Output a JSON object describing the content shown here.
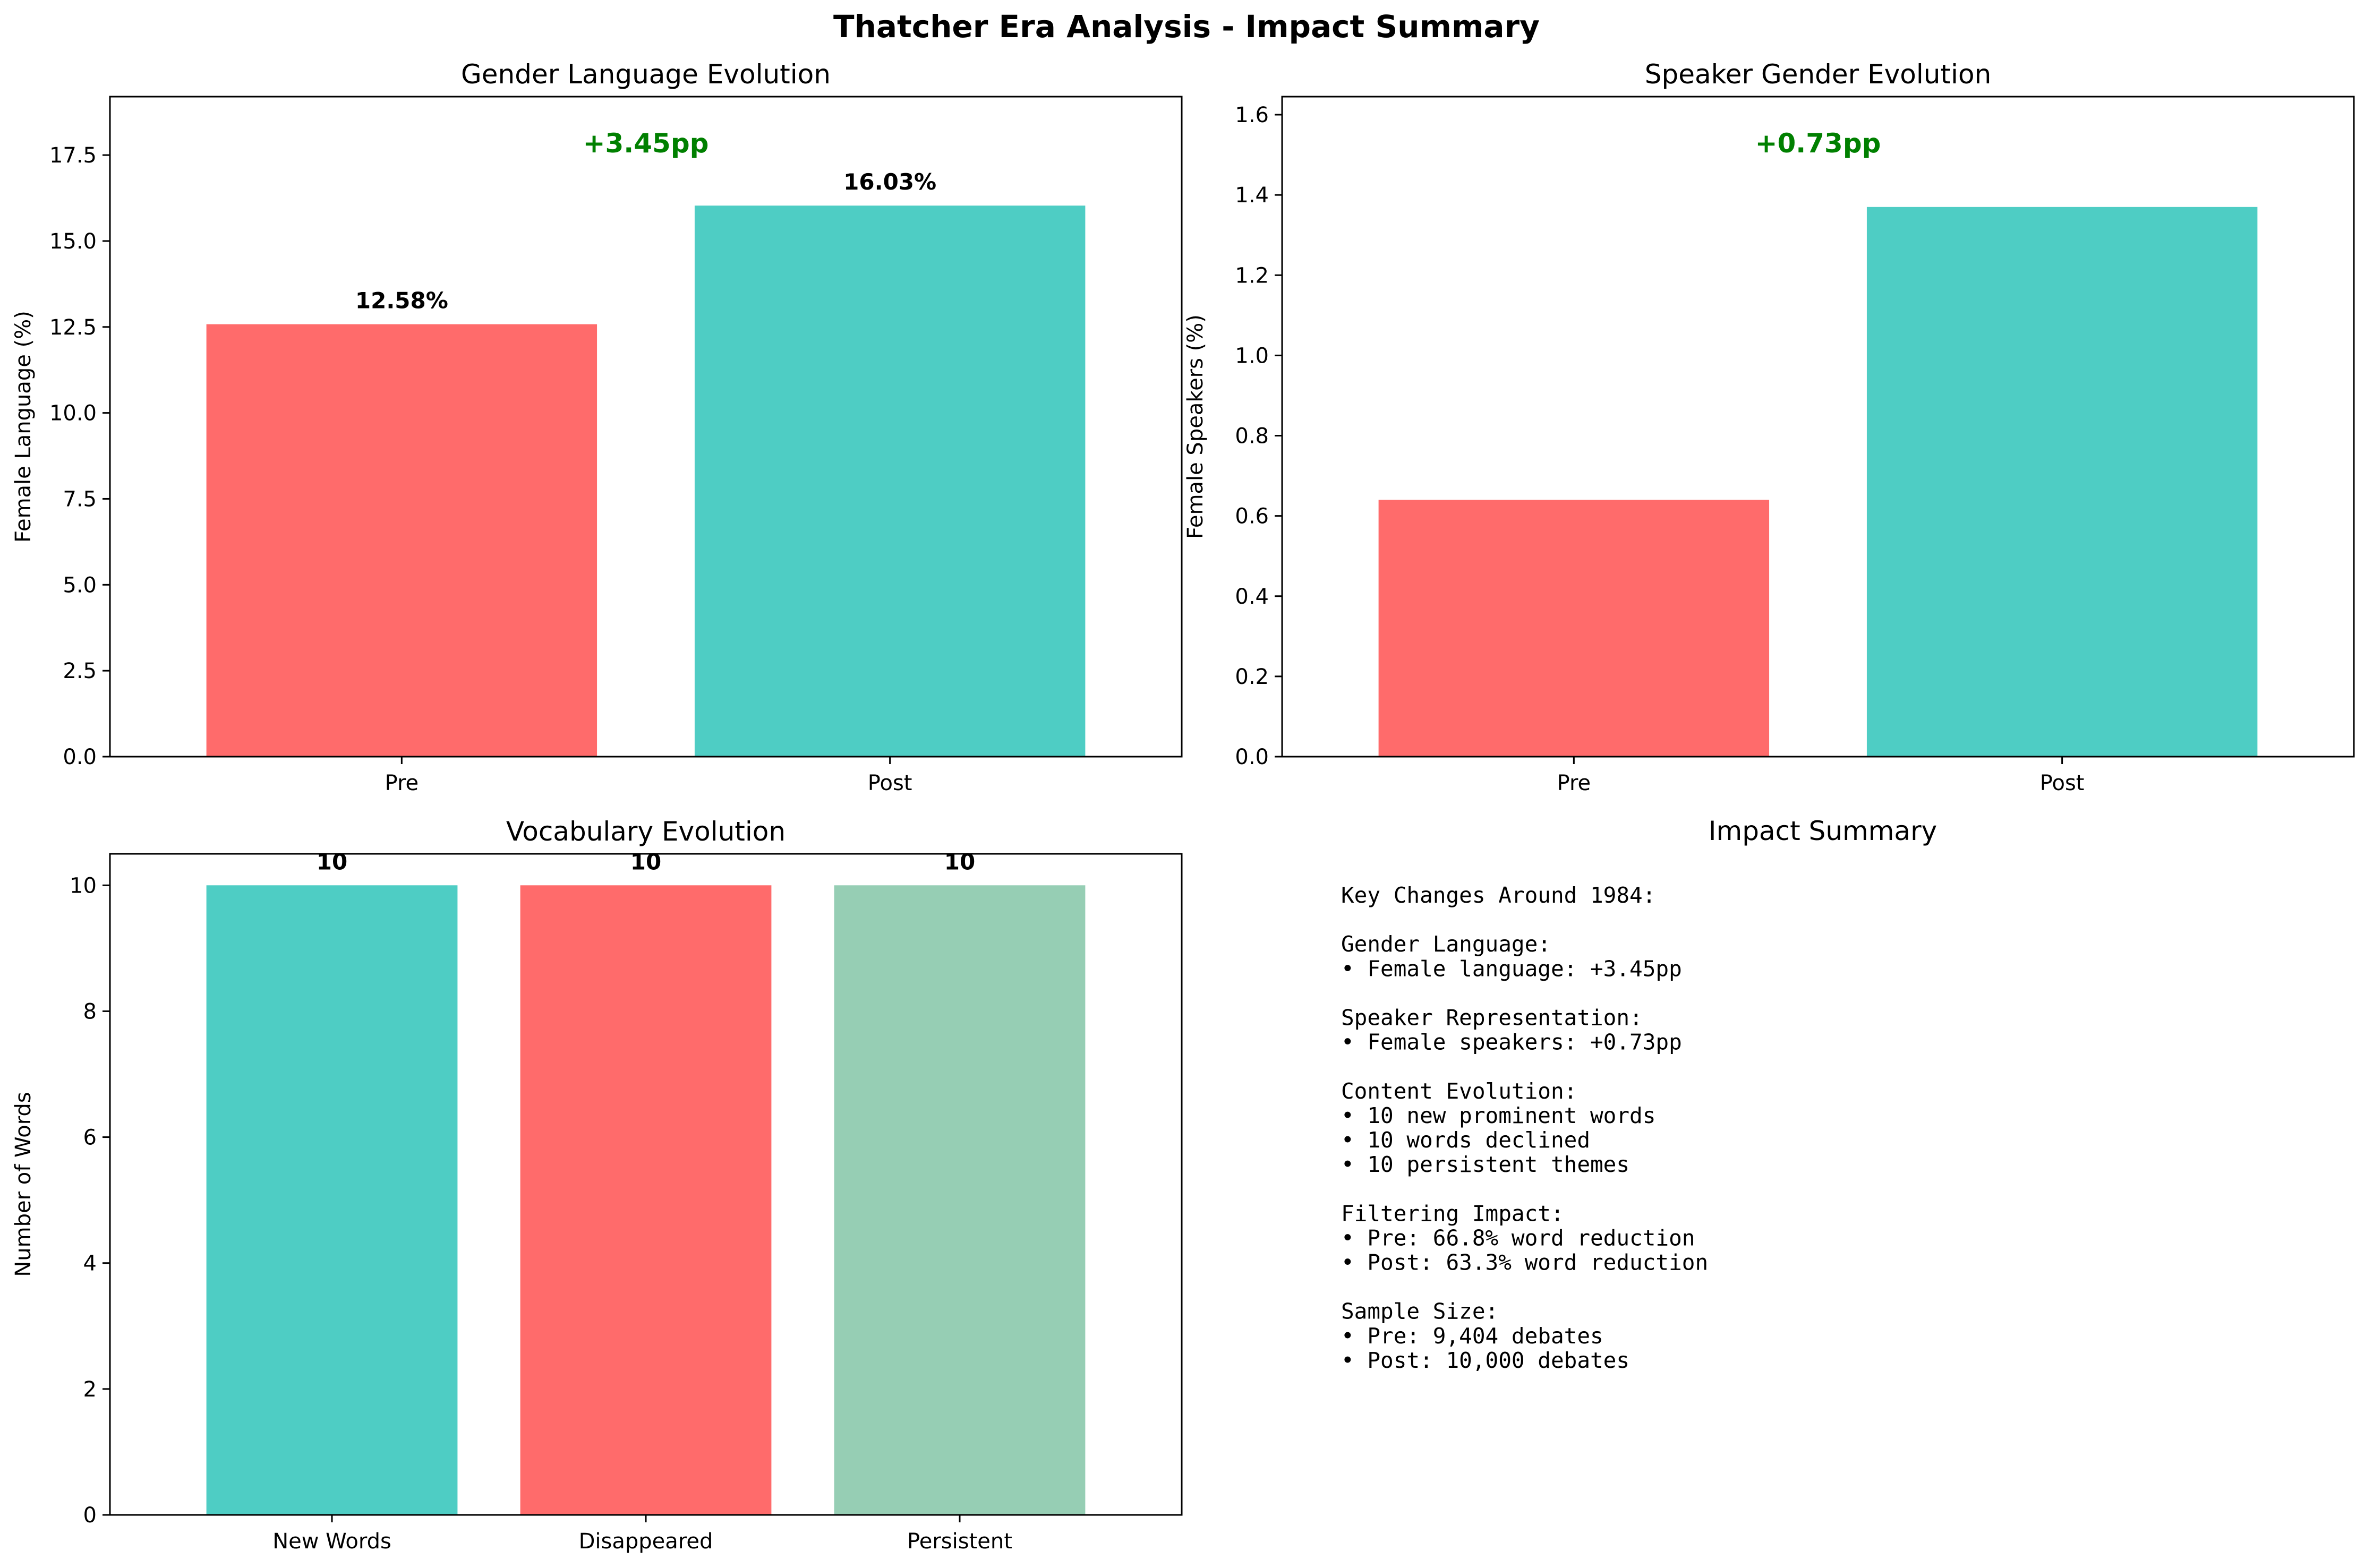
{
  "suptitle": "Thatcher Era Analysis - Impact Summary",
  "chart_data": [
    {
      "type": "bar",
      "title": "Gender Language Evolution",
      "xlabel": "",
      "ylabel": "Female Language (%)",
      "categories": [
        "Pre",
        "Post"
      ],
      "values": [
        12.58,
        16.03
      ],
      "colors": [
        "#ff6b6b",
        "#4ecdc4"
      ],
      "value_labels": [
        "12.58%",
        "16.03%"
      ],
      "annotation": {
        "text": "+3.45pp",
        "color": "#008000"
      },
      "ylim": [
        0,
        19.2
      ],
      "yticks": [
        0.0,
        2.5,
        5.0,
        7.5,
        10.0,
        12.5,
        15.0,
        17.5
      ],
      "ytick_labels": [
        "0.0",
        "2.5",
        "5.0",
        "7.5",
        "10.0",
        "12.5",
        "15.0",
        "17.5"
      ],
      "grid": false
    },
    {
      "type": "bar",
      "title": "Speaker Gender Evolution",
      "xlabel": "",
      "ylabel": "Female Speakers (%)",
      "categories": [
        "Pre",
        "Post"
      ],
      "values": [
        0.64,
        1.37
      ],
      "colors": [
        "#ff6b6b",
        "#4ecdc4"
      ],
      "value_labels": [],
      "annotation": {
        "text": "+0.73pp",
        "color": "#008000"
      },
      "ylim": [
        0,
        1.645
      ],
      "yticks": [
        0.0,
        0.2,
        0.4,
        0.6,
        0.8,
        1.0,
        1.2,
        1.4,
        1.6
      ],
      "ytick_labels": [
        "0.0",
        "0.2",
        "0.4",
        "0.6",
        "0.8",
        "1.0",
        "1.2",
        "1.4",
        "1.6"
      ],
      "grid": false
    },
    {
      "type": "bar",
      "title": "Vocabulary Evolution",
      "xlabel": "",
      "ylabel": "Number of Words",
      "categories": [
        "New Words",
        "Disappeared",
        "Persistent"
      ],
      "values": [
        10,
        10,
        10
      ],
      "colors": [
        "#4ecdc4",
        "#ff6b6b",
        "#96ceb4"
      ],
      "value_labels": [
        "10",
        "10",
        "10"
      ],
      "annotation": null,
      "ylim": [
        0,
        10.5
      ],
      "yticks": [
        0,
        2,
        4,
        6,
        8,
        10
      ],
      "ytick_labels": [
        "0",
        "2",
        "4",
        "6",
        "8",
        "10"
      ],
      "grid": false
    }
  ],
  "summary": {
    "title": "Impact Summary",
    "lines": [
      "Key Changes Around 1984:",
      "",
      "Gender Language:",
      "• Female language: +3.45pp",
      "",
      "Speaker Representation:",
      "• Female speakers: +0.73pp",
      "",
      "Content Evolution:",
      "• 10 new prominent words",
      "• 10 words declined",
      "• 10 persistent themes",
      "",
      "Filtering Impact:",
      "• Pre: 66.8% word reduction",
      "• Post: 63.3% word reduction",
      "",
      "Sample Size:",
      "• Pre: 9,404 debates",
      "• Post: 10,000 debates"
    ]
  }
}
